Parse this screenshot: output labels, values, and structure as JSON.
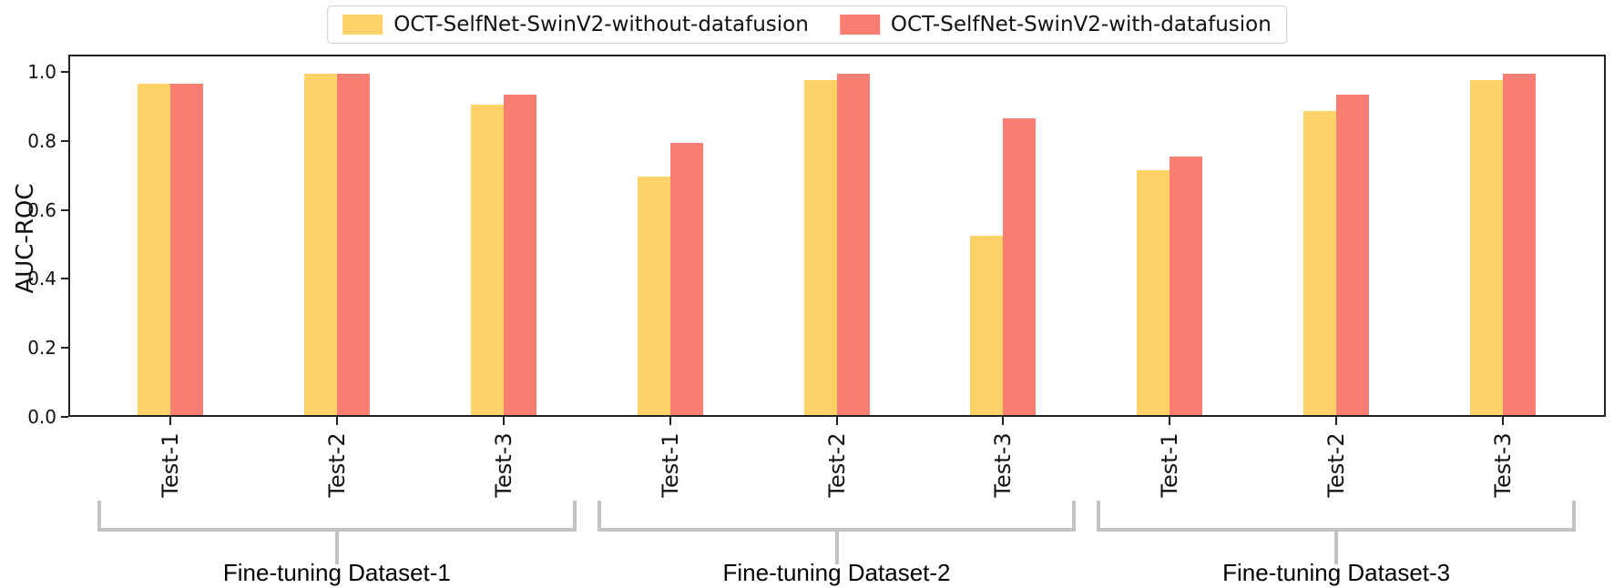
{
  "chart_data": {
    "type": "bar",
    "title": "",
    "ylabel": "AUC-ROC",
    "xlabel": "",
    "ylim": [
      0.0,
      1.05
    ],
    "grid": false,
    "legend_position": "top-center",
    "yticks": [
      "0.0",
      "0.2",
      "0.4",
      "0.6",
      "0.8",
      "1.0"
    ],
    "categories": [
      "Test-1",
      "Test-2",
      "Test-3",
      "Test-1",
      "Test-2",
      "Test-3",
      "Test-1",
      "Test-2",
      "Test-3"
    ],
    "groups": [
      {
        "label": "Fine-tuning Dataset-1",
        "categories": [
          "Test-1",
          "Test-2",
          "Test-3"
        ]
      },
      {
        "label": "Fine-tuning Dataset-2",
        "categories": [
          "Test-1",
          "Test-2",
          "Test-3"
        ]
      },
      {
        "label": "Fine-tuning Dataset-3",
        "categories": [
          "Test-1",
          "Test-2",
          "Test-3"
        ]
      }
    ],
    "series": [
      {
        "name": "OCT-SelfNet-SwinV2-without-datafusion",
        "color": "#FDD266",
        "values": [
          0.96,
          0.99,
          0.9,
          0.69,
          0.97,
          0.52,
          0.71,
          0.88,
          0.97
        ]
      },
      {
        "name": "OCT-SelfNet-SwinV2-with-datafusion",
        "color": "#F97D70",
        "values": [
          0.96,
          0.99,
          0.93,
          0.79,
          0.99,
          0.86,
          0.75,
          0.93,
          0.99
        ]
      }
    ]
  },
  "colors": {
    "without_datafusion": "#FDD266",
    "with_datafusion": "#F97D70",
    "axis": "#222222",
    "bracket": "#c3c3c3",
    "background": "#ffffff"
  }
}
